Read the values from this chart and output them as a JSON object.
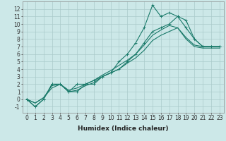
{
  "title": "",
  "xlabel": "Humidex (Indice chaleur)",
  "bg_color": "#cce8e8",
  "grid_color": "#aacaca",
  "line_color": "#1a7a6a",
  "s0_x": [
    0,
    1,
    2,
    3,
    4,
    5,
    6,
    7,
    8,
    9,
    10,
    11,
    12,
    13,
    14,
    15,
    16,
    17,
    18,
    19,
    20,
    21,
    22,
    23
  ],
  "s0_y": [
    0,
    -1,
    0,
    2,
    2,
    1,
    1,
    2,
    2,
    3,
    3.5,
    5,
    6,
    7.5,
    9.5,
    12.5,
    11,
    11.5,
    11,
    10.5,
    8,
    7,
    7,
    7
  ],
  "s1_x": [
    0,
    1,
    2,
    3,
    4,
    5,
    6,
    7,
    8,
    9,
    10,
    11,
    12,
    13,
    14,
    15,
    16,
    17,
    18,
    19,
    20,
    21,
    22,
    23
  ],
  "s1_y": [
    0,
    -1,
    0,
    2,
    2,
    1,
    2,
    2,
    2.5,
    3,
    3.5,
    4,
    5,
    6,
    7.5,
    9,
    9.5,
    10,
    11,
    9.5,
    8,
    7,
    7,
    7
  ],
  "s2_x": [
    0,
    1,
    2,
    3,
    4,
    5,
    6,
    7,
    8,
    9,
    10,
    11,
    12,
    13,
    14,
    15,
    16,
    17,
    18,
    19,
    20,
    21,
    22,
    23
  ],
  "s2_y": [
    0,
    -0.5,
    0.2,
    1.8,
    2,
    1.2,
    1.5,
    2,
    2.5,
    3.2,
    3.8,
    4.5,
    5.2,
    6,
    7.2,
    8.5,
    9.2,
    9.8,
    9.5,
    8.2,
    7.2,
    7,
    7,
    7
  ],
  "s3_x": [
    0,
    1,
    2,
    3,
    4,
    5,
    6,
    7,
    8,
    9,
    10,
    11,
    12,
    13,
    14,
    15,
    16,
    17,
    18,
    19,
    20,
    21,
    22,
    23
  ],
  "s3_y": [
    0,
    -0.5,
    0.2,
    1.5,
    2,
    1.0,
    1.2,
    1.8,
    2.2,
    3.0,
    3.5,
    4.0,
    4.8,
    5.5,
    6.5,
    7.8,
    8.5,
    9.0,
    9.5,
    8.0,
    7.0,
    6.8,
    6.8,
    6.8
  ],
  "xlim": [
    -0.5,
    23.5
  ],
  "ylim": [
    -1.8,
    13
  ],
  "yticks": [
    -1,
    0,
    1,
    2,
    3,
    4,
    5,
    6,
    7,
    8,
    9,
    10,
    11,
    12
  ],
  "xticks": [
    0,
    1,
    2,
    3,
    4,
    5,
    6,
    7,
    8,
    9,
    10,
    11,
    12,
    13,
    14,
    15,
    16,
    17,
    18,
    19,
    20,
    21,
    22,
    23
  ],
  "tick_fontsize": 5.5,
  "xlabel_fontsize": 6.5
}
